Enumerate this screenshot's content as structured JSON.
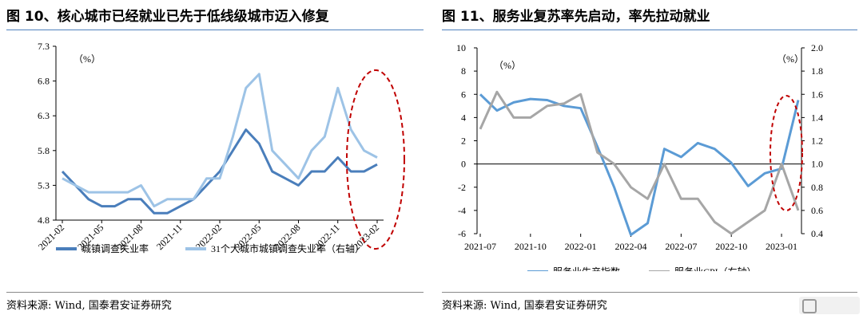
{
  "left": {
    "title": "图 10、核心城市已经就业已先于低线级城市迈入修复",
    "source": "资料来源: Wind, 国泰君安证券研究",
    "chart_data": {
      "type": "line",
      "unit_label": "（%）",
      "ylim": [
        4.8,
        7.3
      ],
      "yticks": [
        4.8,
        5.3,
        5.8,
        6.3,
        6.8,
        7.3
      ],
      "xticks": [
        "2021-02",
        "2021-05",
        "2021-08",
        "2021-11",
        "2022-02",
        "2022-05",
        "2022-08",
        "2022-11",
        "2023-02"
      ],
      "x": [
        "2021-02",
        "2021-03",
        "2021-04",
        "2021-05",
        "2021-06",
        "2021-07",
        "2021-08",
        "2021-09",
        "2021-10",
        "2021-11",
        "2021-12",
        "2022-01",
        "2022-02",
        "2022-03",
        "2022-04",
        "2022-05",
        "2022-06",
        "2022-07",
        "2022-08",
        "2022-09",
        "2022-10",
        "2022-11",
        "2022-12",
        "2023-01",
        "2023-02"
      ],
      "series": [
        {
          "name": "城镇调查失业率",
          "color": "#4a7ebb",
          "axis": "left",
          "values": [
            5.5,
            5.3,
            5.1,
            5.0,
            5.0,
            5.1,
            5.1,
            4.9,
            4.9,
            5.0,
            5.1,
            5.3,
            5.5,
            5.8,
            6.1,
            5.9,
            5.5,
            5.4,
            5.3,
            5.5,
            5.5,
            5.7,
            5.5,
            5.5,
            5.6
          ]
        },
        {
          "name": "31个大城市城镇调查失业率（右轴）",
          "color": "#9dc3e6",
          "axis": "right",
          "values": [
            5.4,
            5.3,
            5.2,
            5.2,
            5.2,
            5.2,
            5.3,
            5.0,
            5.1,
            5.1,
            5.1,
            5.4,
            5.4,
            6.0,
            6.7,
            6.9,
            5.8,
            5.6,
            5.4,
            5.8,
            6.0,
            6.7,
            6.1,
            5.8,
            5.7
          ]
        }
      ]
    }
  },
  "right": {
    "title": "图 11、服务业复苏率先启动，率先拉动就业",
    "source": "资料来源: Wind, 国泰君安证券研究",
    "chart_data": {
      "type": "line",
      "unit_left": "（%）",
      "unit_right": "（%）",
      "ylim": [
        -6,
        10
      ],
      "yticks": [
        -6,
        -4,
        -2,
        0,
        2,
        4,
        6,
        8,
        10
      ],
      "ylim_right": [
        0.4,
        2.0
      ],
      "yticks_right": [
        "0.4",
        "0.6",
        "0.8",
        "1.0",
        "1.2",
        "1.4",
        "1.6",
        "1.8",
        "2.0"
      ],
      "xticks": [
        "2021-07",
        "2021-10",
        "2022-01",
        "2022-04",
        "2022-07",
        "2022-10",
        "2023-01"
      ],
      "x": [
        "2021-07",
        "2021-08",
        "2021-09",
        "2021-10",
        "2021-11",
        "2021-12",
        "2022-01",
        "2022-02",
        "2022-03",
        "2022-04",
        "2022-05",
        "2022-06",
        "2022-07",
        "2022-08",
        "2022-09",
        "2022-10",
        "2022-11",
        "2022-12",
        "2023-01",
        "2023-02"
      ],
      "series": [
        {
          "name": "服务业生产指数",
          "color": "#5b9bd5",
          "axis": "left",
          "values": [
            6.0,
            4.6,
            5.3,
            5.6,
            5.5,
            5.0,
            4.8,
            1.5,
            -2.0,
            -6.1,
            -5.1,
            1.3,
            0.6,
            1.8,
            1.3,
            0.1,
            -1.9,
            -0.8,
            -0.4,
            5.5
          ]
        },
        {
          "name": "服务业CPI（右轴）",
          "color": "#a6a6a6",
          "axis": "right",
          "values": [
            1.3,
            1.62,
            1.4,
            1.4,
            1.5,
            1.52,
            1.6,
            1.1,
            1.0,
            0.8,
            0.7,
            1.0,
            0.7,
            0.7,
            0.5,
            0.4,
            0.5,
            0.6,
            1.0,
            0.6
          ]
        }
      ]
    }
  }
}
